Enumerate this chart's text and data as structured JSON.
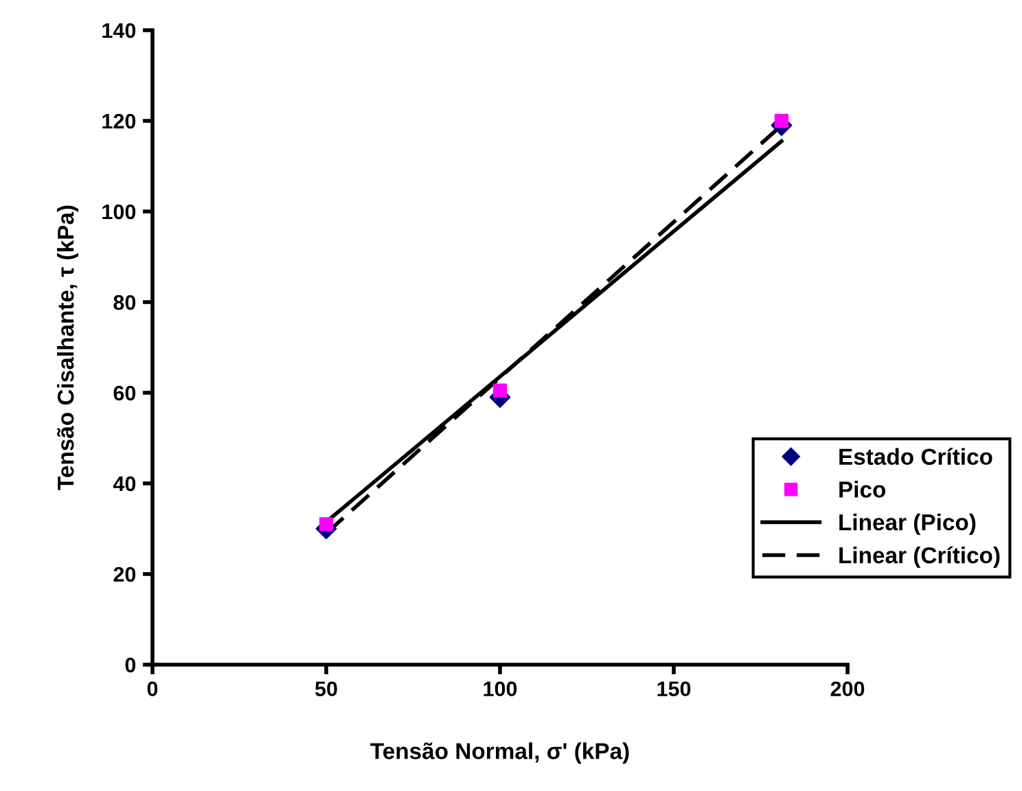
{
  "chart_data": {
    "type": "scatter",
    "xlabel": "Tensão Normal, σ' (kPa)",
    "ylabel": "Tensão Cisalhante, τ (kPa)",
    "xlim": [
      0,
      200
    ],
    "xticks": [
      0,
      50,
      100,
      150,
      200
    ],
    "ylim": [
      0,
      140
    ],
    "yticks": [
      0,
      20,
      40,
      60,
      80,
      100,
      120,
      140
    ],
    "grid": false,
    "legend": "right",
    "series": [
      {
        "name": "Estado Crítico",
        "marker": "diamond",
        "color": "#000080",
        "x": [
          50,
          100,
          181
        ],
        "values": [
          30,
          59,
          119
        ]
      },
      {
        "name": "Pico",
        "marker": "square",
        "color": "#ff00ff",
        "x": [
          50,
          100,
          181
        ],
        "values": [
          31,
          60.5,
          120
        ]
      },
      {
        "name": "Linear (Pico)",
        "type": "line",
        "line_style": "solid",
        "color": "#000000",
        "x": [
          50,
          181
        ],
        "values": [
          31.5,
          115.5
        ]
      },
      {
        "name": "Linear (Crítico)",
        "type": "line",
        "line_style": "dashed",
        "color": "#000000",
        "x": [
          50,
          181
        ],
        "values": [
          29,
          119
        ]
      }
    ]
  }
}
